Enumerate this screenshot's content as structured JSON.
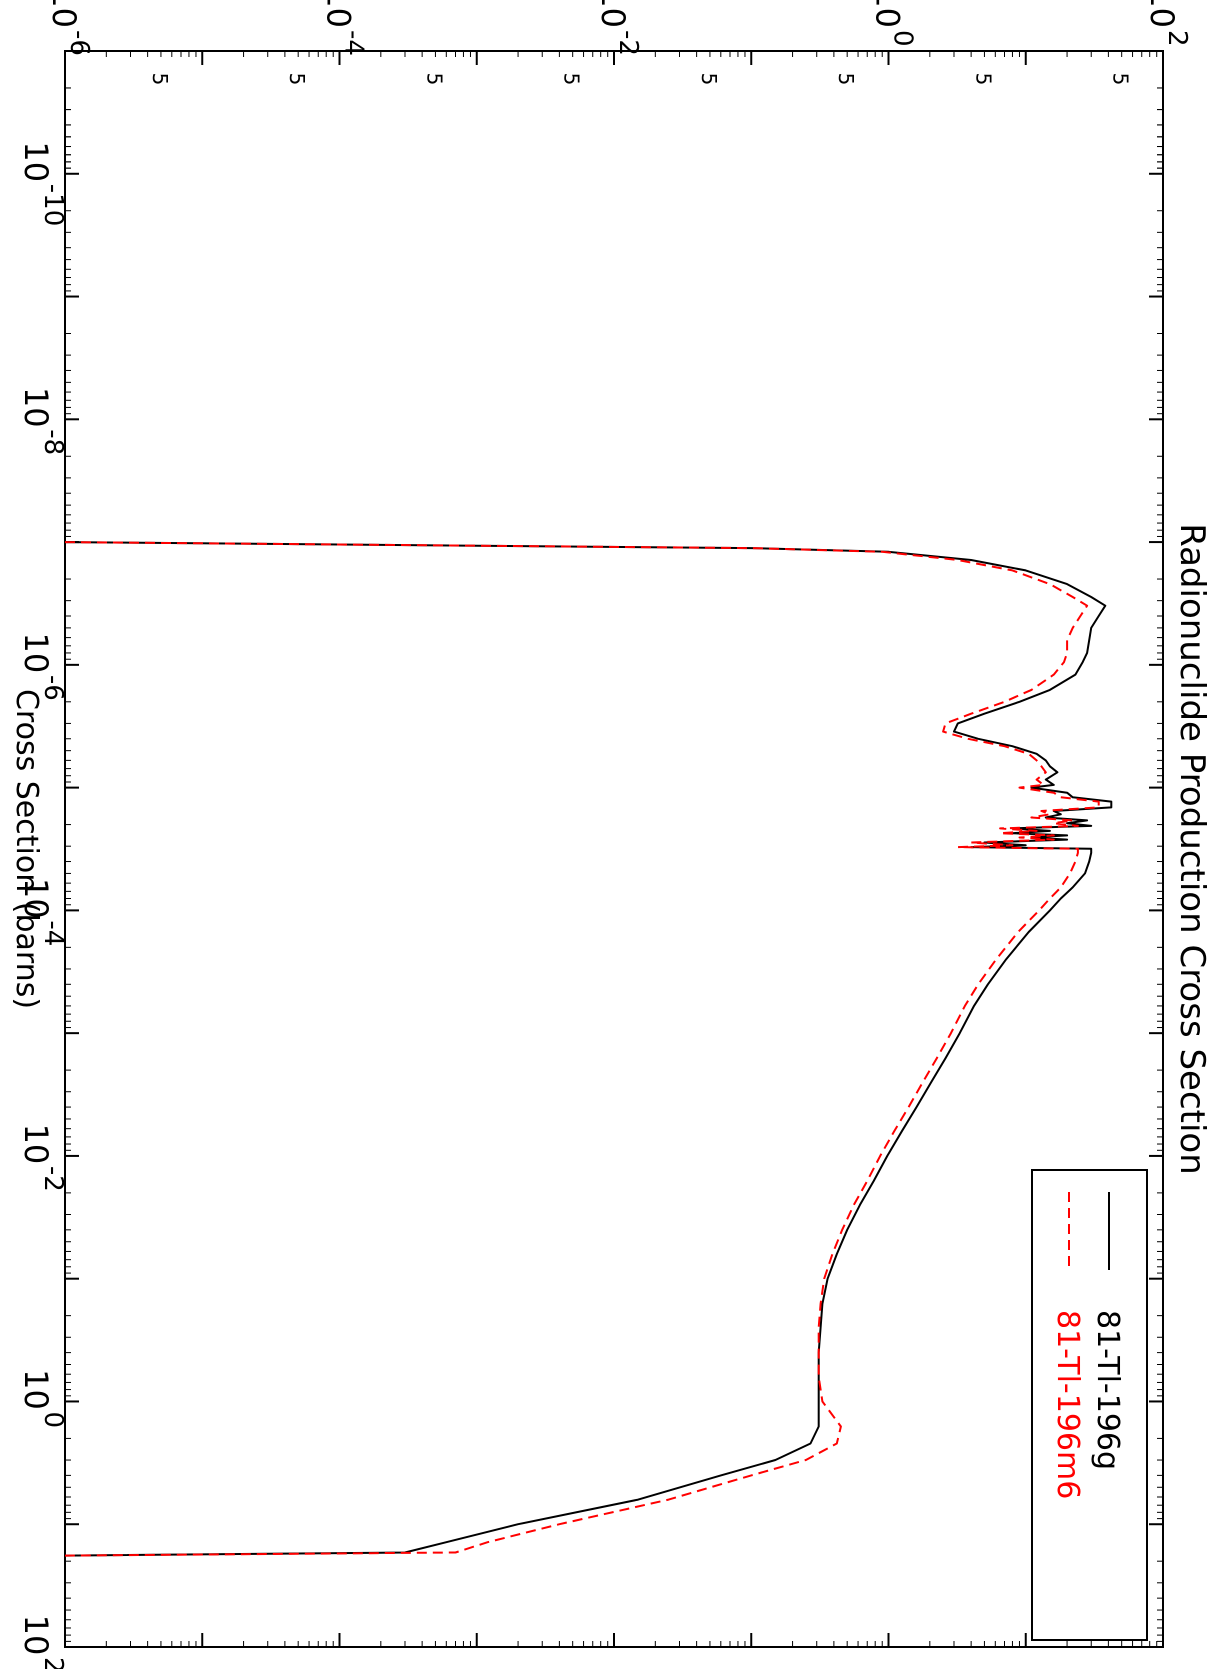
{
  "chart_data": {
    "type": "line",
    "title": "Radionuclide Production Cross Section",
    "ylabel": "Cross Section (barns)",
    "xlabel": "",
    "x_scale": "log",
    "y_scale": "log",
    "xlim": [
      1e-11,
      100
    ],
    "ylim": [
      1e-06,
      100
    ],
    "grid": false,
    "legend_position": "top-left",
    "x_ticks": [
      {
        "value": 1e-10,
        "base": "10",
        "exp": "-10"
      },
      {
        "value": 1e-08,
        "base": "10",
        "exp": "-8"
      },
      {
        "value": 1e-06,
        "base": "10",
        "exp": "-6"
      },
      {
        "value": 0.0001,
        "base": "10",
        "exp": "-4"
      },
      {
        "value": 0.01,
        "base": "10",
        "exp": "-2"
      },
      {
        "value": 1,
        "base": "10",
        "exp": "0"
      },
      {
        "value": 100,
        "base": "10",
        "exp": "2"
      }
    ],
    "y_ticks": [
      {
        "value": 100,
        "base": "10",
        "exp": "2"
      },
      {
        "value": 1,
        "base": "10",
        "exp": "0"
      },
      {
        "value": 0.01,
        "base": "10",
        "exp": "-2"
      },
      {
        "value": 0.0001,
        "base": "10",
        "exp": "-4"
      },
      {
        "value": 1e-06,
        "base": "10",
        "exp": "-6"
      }
    ],
    "y_minor_labels": [
      {
        "value": 50,
        "label": "5"
      },
      {
        "value": 5,
        "label": "5"
      },
      {
        "value": 0.5,
        "label": "5"
      },
      {
        "value": 0.05,
        "label": "5"
      },
      {
        "value": 0.005,
        "label": "5"
      },
      {
        "value": 0.0005,
        "label": "5"
      },
      {
        "value": 5e-05,
        "label": "5"
      },
      {
        "value": 5e-06,
        "label": "5"
      }
    ],
    "series": [
      {
        "name": "81-Tl-196g",
        "color": "#000000",
        "dash": "solid",
        "points": [
          [
            1e-07,
            1e-06
          ],
          [
            1.07e-07,
            0.001
          ],
          [
            1.12e-07,
            0.1
          ],
          [
            1.2e-07,
            1.0
          ],
          [
            1.4e-07,
            4.0
          ],
          [
            1.7e-07,
            10
          ],
          [
            2.2e-07,
            20
          ],
          [
            2.8e-07,
            30
          ],
          [
            3.3e-07,
            38
          ],
          [
            4e-07,
            34
          ],
          [
            5e-07,
            30
          ],
          [
            6.3e-07,
            29
          ],
          [
            8e-07,
            28
          ],
          [
            9.5e-07,
            26
          ],
          [
            1.2e-06,
            23
          ],
          [
            1.6e-06,
            15
          ],
          [
            2e-06,
            9
          ],
          [
            2.5e-06,
            5.0
          ],
          [
            3e-06,
            3.2
          ],
          [
            3.5e-06,
            3.0
          ],
          [
            4e-06,
            4.5
          ],
          [
            4.6e-06,
            8.0
          ],
          [
            5.3e-06,
            12
          ],
          [
            6e-06,
            14
          ],
          [
            6.7e-06,
            15
          ],
          [
            7.5e-06,
            17
          ],
          [
            8.6e-06,
            14
          ],
          [
            9.5e-06,
            16
          ],
          [
            1e-05,
            11
          ],
          [
            1.1e-05,
            20
          ],
          [
            1.2e-05,
            22
          ],
          [
            1.3e-05,
            42
          ],
          [
            1.45e-05,
            42
          ],
          [
            1.55e-05,
            16
          ],
          [
            1.65e-05,
            18
          ],
          [
            1.75e-05,
            14
          ],
          [
            1.85e-05,
            28
          ],
          [
            1.95e-05,
            20
          ],
          [
            2.05e-05,
            30
          ],
          [
            2.15e-05,
            8
          ],
          [
            2.25e-05,
            15
          ],
          [
            2.35e-05,
            8
          ],
          [
            2.45e-05,
            20
          ],
          [
            2.55e-05,
            11
          ],
          [
            2.65e-05,
            20
          ],
          [
            2.8e-05,
            5.0
          ],
          [
            2.95e-05,
            10
          ],
          [
            3.05e-05,
            4.0
          ],
          [
            3.15e-05,
            30
          ],
          [
            3.4e-05,
            30
          ],
          [
            4e-05,
            29
          ],
          [
            5e-05,
            27
          ],
          [
            6.5e-05,
            22
          ],
          [
            8e-05,
            18
          ],
          [
            0.0001,
            15
          ],
          [
            0.00015,
            10.5
          ],
          [
            0.00025,
            7.2
          ],
          [
            0.0004,
            5.3
          ],
          [
            0.0006,
            4.2
          ],
          [
            0.001,
            3.3
          ],
          [
            0.0016,
            2.6
          ],
          [
            0.0025,
            2.05
          ],
          [
            0.004,
            1.6
          ],
          [
            0.0063,
            1.25
          ],
          [
            0.01,
            0.98
          ],
          [
            0.016,
            0.78
          ],
          [
            0.025,
            0.62
          ],
          [
            0.04,
            0.5
          ],
          [
            0.063,
            0.42
          ],
          [
            0.1,
            0.36
          ],
          [
            0.16,
            0.33
          ],
          [
            0.25,
            0.32
          ],
          [
            0.4,
            0.31
          ],
          [
            0.63,
            0.31
          ],
          [
            1.0,
            0.31
          ],
          [
            1.6,
            0.31
          ],
          [
            2.2,
            0.27
          ],
          [
            3.0,
            0.15
          ],
          [
            4.0,
            0.06
          ],
          [
            6.3,
            0.015
          ],
          [
            10,
            0.002
          ],
          [
            14,
            0.0006
          ],
          [
            17,
            0.0003
          ],
          [
            18,
            1e-06
          ]
        ]
      },
      {
        "name": "81-Tl-196m6",
        "color": "#ff0000",
        "dash": "dashed",
        "points": [
          [
            1e-07,
            1e-06
          ],
          [
            1.07e-07,
            0.001
          ],
          [
            1.12e-07,
            0.1
          ],
          [
            1.2e-07,
            0.9
          ],
          [
            1.4e-07,
            3.2
          ],
          [
            1.7e-07,
            8
          ],
          [
            2.2e-07,
            15
          ],
          [
            2.8e-07,
            22
          ],
          [
            3.3e-07,
            28
          ],
          [
            4e-07,
            25
          ],
          [
            5e-07,
            22
          ],
          [
            6.3e-07,
            20
          ],
          [
            8e-07,
            20
          ],
          [
            9.5e-07,
            19
          ],
          [
            1.2e-06,
            16
          ],
          [
            1.6e-06,
            11
          ],
          [
            2e-06,
            7
          ],
          [
            2.5e-06,
            4.0
          ],
          [
            3e-06,
            2.6
          ],
          [
            3.5e-06,
            2.5
          ],
          [
            4e-06,
            3.8
          ],
          [
            4.6e-06,
            7.0
          ],
          [
            5.3e-06,
            10.5
          ],
          [
            6e-06,
            12
          ],
          [
            6.7e-06,
            13
          ],
          [
            7.5e-06,
            14
          ],
          [
            8.6e-06,
            12
          ],
          [
            9.5e-06,
            13.5
          ],
          [
            1e-05,
            9
          ],
          [
            1.1e-05,
            16
          ],
          [
            1.2e-05,
            18
          ],
          [
            1.3e-05,
            34
          ],
          [
            1.45e-05,
            34
          ],
          [
            1.55e-05,
            13
          ],
          [
            1.65e-05,
            15
          ],
          [
            1.75e-05,
            11
          ],
          [
            1.85e-05,
            22
          ],
          [
            1.95e-05,
            16
          ],
          [
            2.05e-05,
            24
          ],
          [
            2.15e-05,
            6.5
          ],
          [
            2.25e-05,
            12
          ],
          [
            2.35e-05,
            6.5
          ],
          [
            2.45e-05,
            16
          ],
          [
            2.55e-05,
            9
          ],
          [
            2.65e-05,
            16
          ],
          [
            2.8e-05,
            4.0
          ],
          [
            2.95e-05,
            8
          ],
          [
            3.05e-05,
            3.2
          ],
          [
            3.15e-05,
            24
          ],
          [
            3.4e-05,
            24
          ],
          [
            4e-05,
            23
          ],
          [
            5e-05,
            21
          ],
          [
            6.5e-05,
            18
          ],
          [
            8e-05,
            15
          ],
          [
            0.0001,
            12.5
          ],
          [
            0.00015,
            8.8
          ],
          [
            0.00025,
            6.1
          ],
          [
            0.0004,
            4.5
          ],
          [
            0.0006,
            3.6
          ],
          [
            0.001,
            2.85
          ],
          [
            0.0016,
            2.25
          ],
          [
            0.0025,
            1.78
          ],
          [
            0.004,
            1.4
          ],
          [
            0.0063,
            1.1
          ],
          [
            0.01,
            0.87
          ],
          [
            0.016,
            0.7
          ],
          [
            0.025,
            0.56
          ],
          [
            0.04,
            0.46
          ],
          [
            0.063,
            0.39
          ],
          [
            0.1,
            0.34
          ],
          [
            0.16,
            0.32
          ],
          [
            0.25,
            0.31
          ],
          [
            0.4,
            0.31
          ],
          [
            0.63,
            0.31
          ],
          [
            1.0,
            0.33
          ],
          [
            1.6,
            0.45
          ],
          [
            2.2,
            0.42
          ],
          [
            3.0,
            0.25
          ],
          [
            4.0,
            0.1
          ],
          [
            6.3,
            0.025
          ],
          [
            10,
            0.004
          ],
          [
            14,
            0.0012
          ],
          [
            17,
            0.0007
          ],
          [
            18,
            1e-06
          ]
        ]
      }
    ]
  }
}
